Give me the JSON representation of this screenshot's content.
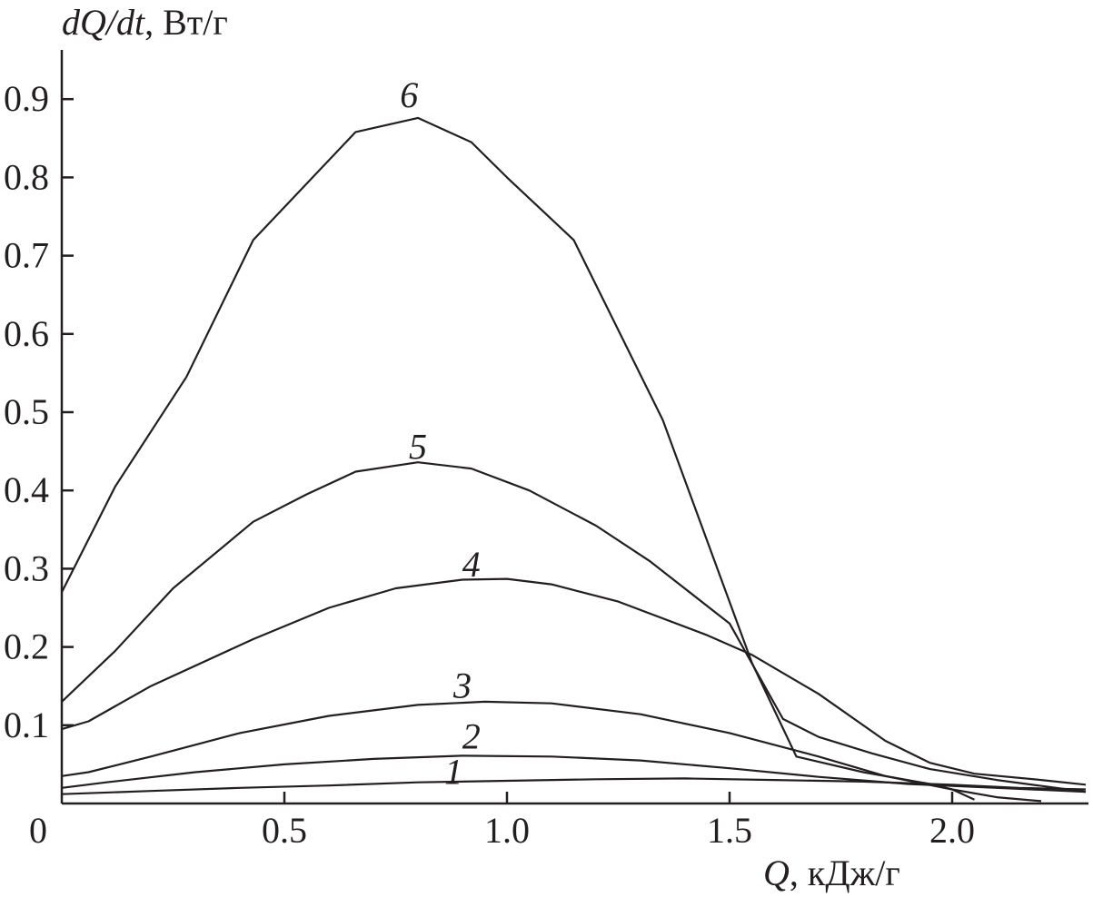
{
  "chart_data": {
    "type": "line",
    "ylabel": "dQ/dt, Вт/г",
    "ylabel_parts": {
      "var": "dQ/dt",
      "unit": ", Вт/г"
    },
    "xlabel": "Q, кДж/г",
    "xlabel_parts": {
      "var": "Q",
      "unit": ", кДж/г"
    },
    "xlim": [
      0,
      2.3
    ],
    "ylim": [
      0,
      0.96
    ],
    "x_origin_label": "0",
    "x_ticks": [
      {
        "value": 0.5,
        "label": "0.5"
      },
      {
        "value": 1.0,
        "label": "1.0"
      },
      {
        "value": 1.5,
        "label": "1.5"
      },
      {
        "value": 2.0,
        "label": "2.0"
      }
    ],
    "y_ticks": [
      {
        "value": 0.1,
        "label": "0.1"
      },
      {
        "value": 0.2,
        "label": "0.2"
      },
      {
        "value": 0.3,
        "label": "0.3"
      },
      {
        "value": 0.4,
        "label": "0.4"
      },
      {
        "value": 0.5,
        "label": "0.5"
      },
      {
        "value": 0.6,
        "label": "0.6"
      },
      {
        "value": 0.7,
        "label": "0.7"
      },
      {
        "value": 0.8,
        "label": "0.8"
      },
      {
        "value": 0.9,
        "label": "0.9"
      }
    ],
    "grid": false,
    "legend": "none",
    "series": [
      {
        "name": "1",
        "label_at": [
          0.88,
          0.025
        ],
        "points": [
          [
            0.0,
            0.012
          ],
          [
            0.2,
            0.016
          ],
          [
            0.4,
            0.02
          ],
          [
            0.6,
            0.023
          ],
          [
            0.8,
            0.027
          ],
          [
            1.0,
            0.029
          ],
          [
            1.2,
            0.031
          ],
          [
            1.4,
            0.032
          ],
          [
            1.6,
            0.03
          ],
          [
            1.8,
            0.028
          ],
          [
            2.0,
            0.024
          ],
          [
            2.15,
            0.02
          ],
          [
            2.3,
            0.018
          ]
        ]
      },
      {
        "name": "2",
        "label_at": [
          0.92,
          0.07
        ],
        "points": [
          [
            0.0,
            0.02
          ],
          [
            0.1,
            0.027
          ],
          [
            0.3,
            0.04
          ],
          [
            0.5,
            0.05
          ],
          [
            0.7,
            0.057
          ],
          [
            0.9,
            0.061
          ],
          [
            1.1,
            0.06
          ],
          [
            1.3,
            0.055
          ],
          [
            1.5,
            0.045
          ],
          [
            1.7,
            0.034
          ],
          [
            1.9,
            0.025
          ],
          [
            2.1,
            0.02
          ],
          [
            2.3,
            0.015
          ]
        ]
      },
      {
        "name": "3",
        "label_at": [
          0.9,
          0.135
        ],
        "points": [
          [
            0.0,
            0.035
          ],
          [
            0.06,
            0.04
          ],
          [
            0.2,
            0.06
          ],
          [
            0.4,
            0.09
          ],
          [
            0.6,
            0.112
          ],
          [
            0.8,
            0.126
          ],
          [
            0.95,
            0.13
          ],
          [
            1.1,
            0.128
          ],
          [
            1.3,
            0.114
          ],
          [
            1.5,
            0.09
          ],
          [
            1.7,
            0.06
          ],
          [
            1.85,
            0.035
          ],
          [
            2.0,
            0.018
          ],
          [
            2.1,
            0.008
          ],
          [
            2.2,
            0.003
          ]
        ]
      },
      {
        "name": "4",
        "label_at": [
          0.92,
          0.29
        ],
        "points": [
          [
            0.0,
            0.095
          ],
          [
            0.06,
            0.105
          ],
          [
            0.2,
            0.15
          ],
          [
            0.43,
            0.21
          ],
          [
            0.6,
            0.25
          ],
          [
            0.75,
            0.275
          ],
          [
            0.9,
            0.286
          ],
          [
            1.0,
            0.287
          ],
          [
            1.1,
            0.28
          ],
          [
            1.25,
            0.258
          ],
          [
            1.45,
            0.215
          ],
          [
            1.55,
            0.19
          ],
          [
            1.7,
            0.14
          ],
          [
            1.85,
            0.08
          ],
          [
            1.95,
            0.052
          ],
          [
            2.05,
            0.038
          ],
          [
            2.2,
            0.03
          ],
          [
            2.3,
            0.024
          ]
        ]
      },
      {
        "name": "5",
        "label_at": [
          0.8,
          0.44
        ],
        "points": [
          [
            0.0,
            0.13
          ],
          [
            0.12,
            0.195
          ],
          [
            0.25,
            0.275
          ],
          [
            0.43,
            0.36
          ],
          [
            0.55,
            0.395
          ],
          [
            0.66,
            0.424
          ],
          [
            0.8,
            0.436
          ],
          [
            0.92,
            0.428
          ],
          [
            1.05,
            0.4
          ],
          [
            1.2,
            0.355
          ],
          [
            1.32,
            0.31
          ],
          [
            1.5,
            0.23
          ],
          [
            1.62,
            0.108
          ],
          [
            1.7,
            0.085
          ],
          [
            1.82,
            0.064
          ],
          [
            1.95,
            0.044
          ],
          [
            2.1,
            0.03
          ],
          [
            2.3,
            0.015
          ]
        ]
      },
      {
        "name": "6",
        "label_at": [
          0.78,
          0.89
        ],
        "points": [
          [
            0.0,
            0.27
          ],
          [
            0.12,
            0.405
          ],
          [
            0.28,
            0.545
          ],
          [
            0.43,
            0.72
          ],
          [
            0.66,
            0.858
          ],
          [
            0.8,
            0.876
          ],
          [
            0.92,
            0.845
          ],
          [
            1.0,
            0.8
          ],
          [
            1.15,
            0.72
          ],
          [
            1.35,
            0.49
          ],
          [
            1.55,
            0.18
          ],
          [
            1.6,
            0.12
          ],
          [
            1.65,
            0.06
          ],
          [
            1.8,
            0.04
          ],
          [
            1.95,
            0.025
          ],
          [
            2.0,
            0.018
          ],
          [
            2.05,
            0.005
          ]
        ]
      }
    ]
  }
}
